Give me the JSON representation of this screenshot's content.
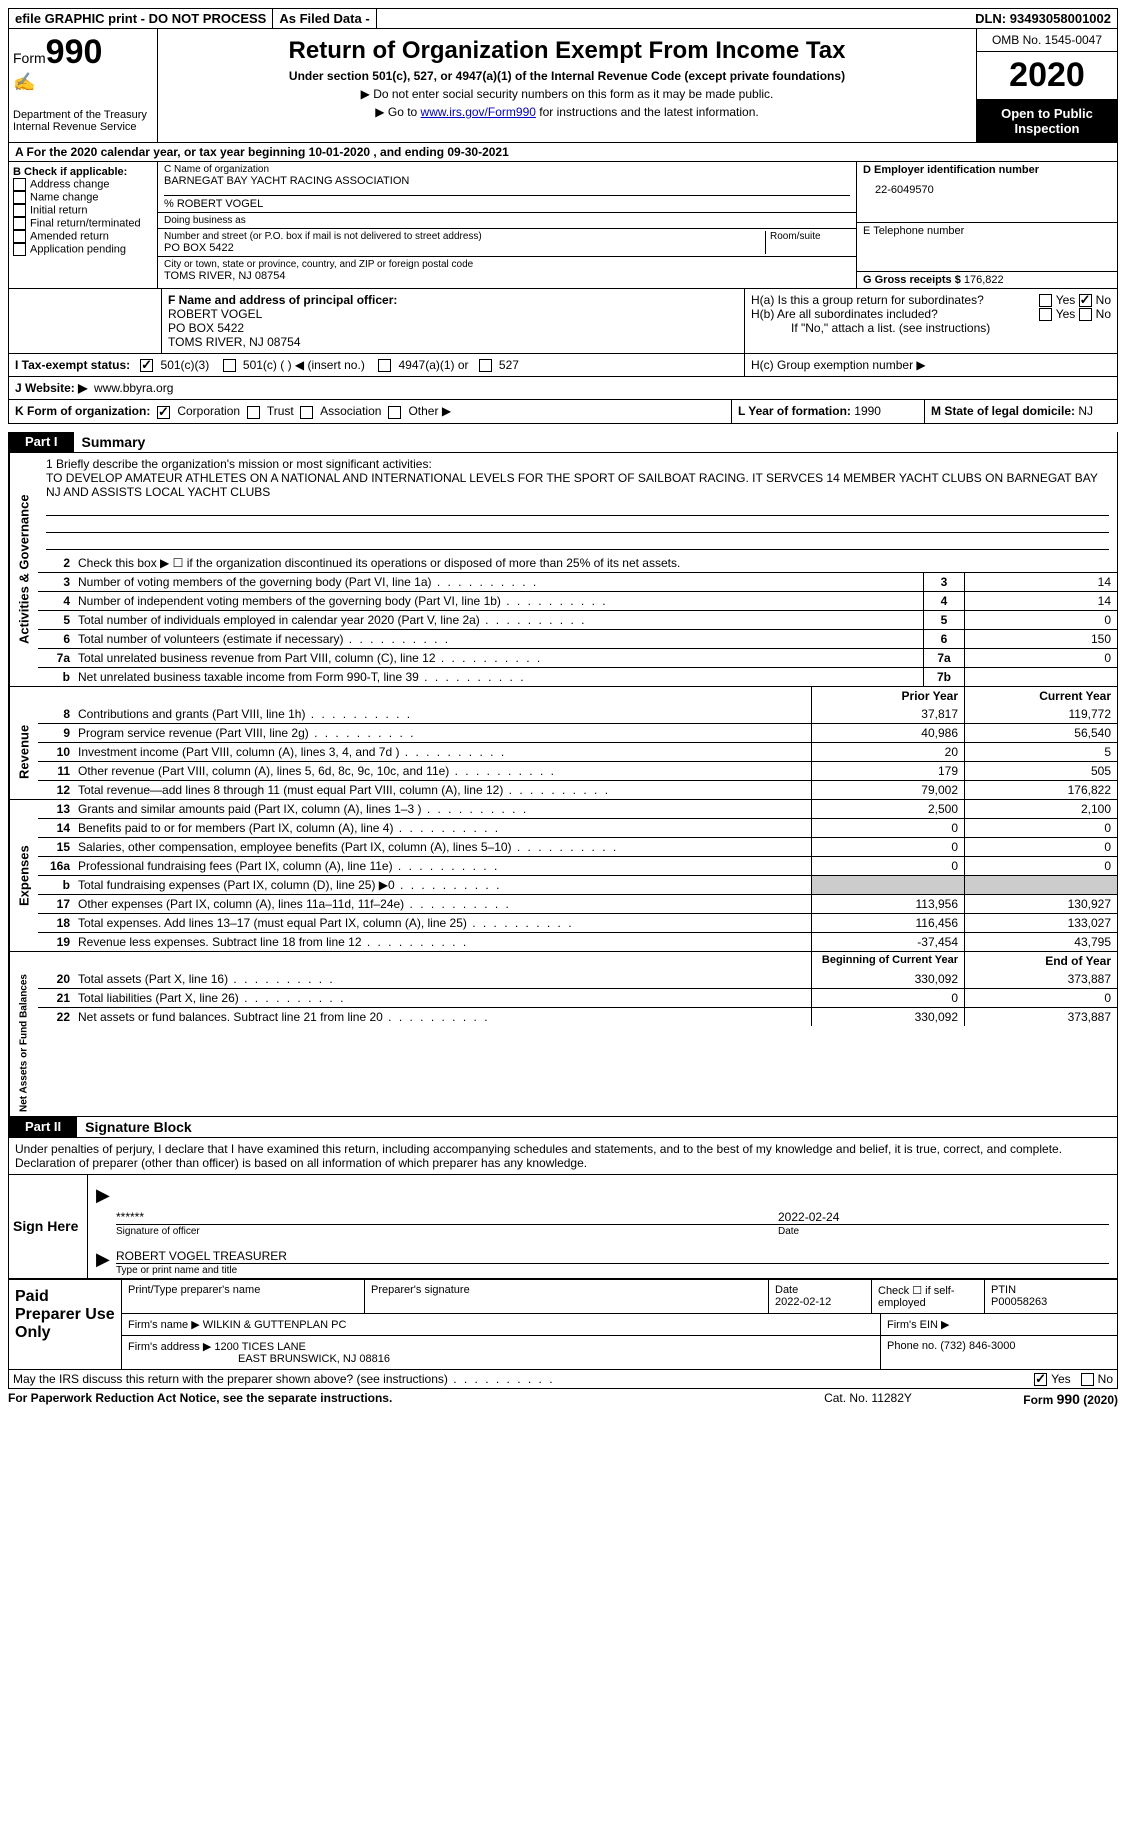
{
  "topbar": {
    "efile": "efile GRAPHIC print - DO NOT PROCESS",
    "asfiled": "As Filed Data -",
    "dln_label": "DLN:",
    "dln": "93493058001002"
  },
  "header": {
    "form_prefix": "Form",
    "form_num": "990",
    "dept": "Department of the Treasury\nInternal Revenue Service",
    "title": "Return of Organization Exempt From Income Tax",
    "sub": "Under section 501(c), 527, or 4947(a)(1) of the Internal Revenue Code (except private foundations)",
    "line1": "▶ Do not enter social security numbers on this form as it may be made public.",
    "line2_a": "▶ Go to ",
    "line2_link": "www.irs.gov/Form990",
    "line2_b": " for instructions and the latest information.",
    "omb": "OMB No. 1545-0047",
    "year": "2020",
    "open": "Open to Public Inspection"
  },
  "rowA": "A   For the 2020 calendar year, or tax year beginning 10-01-2020   , and ending 09-30-2021",
  "boxB": {
    "title": "B Check if applicable:",
    "items": [
      "Address change",
      "Name change",
      "Initial return",
      "Final return/terminated",
      "Amended return",
      "Application pending"
    ]
  },
  "boxC": {
    "label_name": "C Name of organization",
    "org": "BARNEGAT BAY YACHT RACING ASSOCIATION",
    "care": "% ROBERT VOGEL",
    "dba_label": "Doing business as",
    "street_label": "Number and street (or P.O. box if mail is not delivered to street address)",
    "room_label": "Room/suite",
    "street": "PO BOX 5422",
    "city_label": "City or town, state or province, country, and ZIP or foreign postal code",
    "city": "TOMS RIVER, NJ  08754"
  },
  "boxD": {
    "label": "D Employer identification number",
    "ein": "22-6049570"
  },
  "boxE": {
    "label": "E Telephone number"
  },
  "boxG": {
    "label": "G Gross receipts $",
    "val": "176,822"
  },
  "boxF": {
    "label": "F  Name and address of principal officer:",
    "name": "ROBERT VOGEL",
    "street": "PO BOX 5422",
    "city": "TOMS RIVER, NJ  08754"
  },
  "boxH": {
    "ha": "H(a)  Is this a group return for subordinates?",
    "hb": "H(b)  Are all subordinates included?",
    "hb_note": "If \"No,\" attach a list. (see instructions)",
    "hc": "H(c)  Group exemption number ▶",
    "yes": "Yes",
    "no": "No"
  },
  "rowI": {
    "label": "I   Tax-exempt status:",
    "o1": "501(c)(3)",
    "o2": "501(c) (   ) ◀ (insert no.)",
    "o3": "4947(a)(1) or",
    "o4": "527"
  },
  "rowJ": {
    "label": "J   Website: ▶",
    "val": "www.bbyra.org"
  },
  "rowK": {
    "label": "K Form of organization:",
    "o1": "Corporation",
    "o2": "Trust",
    "o3": "Association",
    "o4": "Other ▶"
  },
  "rowL": {
    "label": "L Year of formation:",
    "val": "1990"
  },
  "rowM": {
    "label": "M State of legal domicile:",
    "val": "NJ"
  },
  "part1": {
    "label": "Part I",
    "title": "Summary"
  },
  "mission": {
    "prompt": "1 Briefly describe the organization's mission or most significant activities:",
    "text": "TO DEVELOP AMATEUR ATHLETES ON A NATIONAL AND INTERNATIONAL LEVELS FOR THE SPORT OF SAILBOAT RACING. IT SERVCES 14 MEMBER YACHT CLUBS ON BARNEGAT BAY NJ AND ASSISTS LOCAL YACHT CLUBS"
  },
  "governance": {
    "line2": "Check this box ▶ ☐ if the organization discontinued its operations or disposed of more than 25% of its net assets.",
    "lines": [
      {
        "n": "3",
        "d": "Number of voting members of the governing body (Part VI, line 1a)",
        "box": "3",
        "v": "14"
      },
      {
        "n": "4",
        "d": "Number of independent voting members of the governing body (Part VI, line 1b)",
        "box": "4",
        "v": "14"
      },
      {
        "n": "5",
        "d": "Total number of individuals employed in calendar year 2020 (Part V, line 2a)",
        "box": "5",
        "v": "0"
      },
      {
        "n": "6",
        "d": "Total number of volunteers (estimate if necessary)",
        "box": "6",
        "v": "150"
      },
      {
        "n": "7a",
        "d": "Total unrelated business revenue from Part VIII, column (C), line 12",
        "box": "7a",
        "v": "0"
      },
      {
        "n": "b",
        "d": "Net unrelated business taxable income from Form 990-T, line 39",
        "box": "7b",
        "v": ""
      }
    ]
  },
  "years": {
    "prior": "Prior Year",
    "current": "Current Year"
  },
  "revenue": [
    {
      "n": "8",
      "d": "Contributions and grants (Part VIII, line 1h)",
      "p": "37,817",
      "c": "119,772"
    },
    {
      "n": "9",
      "d": "Program service revenue (Part VIII, line 2g)",
      "p": "40,986",
      "c": "56,540"
    },
    {
      "n": "10",
      "d": "Investment income (Part VIII, column (A), lines 3, 4, and 7d )",
      "p": "20",
      "c": "5"
    },
    {
      "n": "11",
      "d": "Other revenue (Part VIII, column (A), lines 5, 6d, 8c, 9c, 10c, and 11e)",
      "p": "179",
      "c": "505"
    },
    {
      "n": "12",
      "d": "Total revenue—add lines 8 through 11 (must equal Part VIII, column (A), line 12)",
      "p": "79,002",
      "c": "176,822"
    }
  ],
  "expenses": [
    {
      "n": "13",
      "d": "Grants and similar amounts paid (Part IX, column (A), lines 1–3 )",
      "p": "2,500",
      "c": "2,100"
    },
    {
      "n": "14",
      "d": "Benefits paid to or for members (Part IX, column (A), line 4)",
      "p": "0",
      "c": "0"
    },
    {
      "n": "15",
      "d": "Salaries, other compensation, employee benefits (Part IX, column (A), lines 5–10)",
      "p": "0",
      "c": "0"
    },
    {
      "n": "16a",
      "d": "Professional fundraising fees (Part IX, column (A), line 11e)",
      "p": "0",
      "c": "0"
    },
    {
      "n": "b",
      "d": "Total fundraising expenses (Part IX, column (D), line 25) ▶0",
      "p": "",
      "c": "",
      "shaded": true
    },
    {
      "n": "17",
      "d": "Other expenses (Part IX, column (A), lines 11a–11d, 11f–24e)",
      "p": "113,956",
      "c": "130,927"
    },
    {
      "n": "18",
      "d": "Total expenses. Add lines 13–17 (must equal Part IX, column (A), line 25)",
      "p": "116,456",
      "c": "133,027"
    },
    {
      "n": "19",
      "d": "Revenue less expenses. Subtract line 18 from line 12",
      "p": "-37,454",
      "c": "43,795"
    }
  ],
  "years2": {
    "prior": "Beginning of Current Year",
    "current": "End of Year"
  },
  "netassets": [
    {
      "n": "20",
      "d": "Total assets (Part X, line 16)",
      "p": "330,092",
      "c": "373,887"
    },
    {
      "n": "21",
      "d": "Total liabilities (Part X, line 26)",
      "p": "0",
      "c": "0"
    },
    {
      "n": "22",
      "d": "Net assets or fund balances. Subtract line 21 from line 20",
      "p": "330,092",
      "c": "373,887"
    }
  ],
  "part2": {
    "label": "Part II",
    "title": "Signature Block"
  },
  "sig": {
    "text": "Under penalties of perjury, I declare that I have examined this return, including accompanying schedules and statements, and to the best of my knowledge and belief, it is true, correct, and complete. Declaration of preparer (other than officer) is based on all information of which preparer has any knowledge.",
    "sign_here": "Sign Here",
    "stars": "******",
    "sig_label": "Signature of officer",
    "date": "2022-02-24",
    "date_label": "Date",
    "name": "ROBERT VOGEL TREASURER",
    "name_label": "Type or print name and title"
  },
  "preparer": {
    "left": "Paid Preparer Use Only",
    "h1": "Print/Type preparer's name",
    "h2": "Preparer's signature",
    "h3": "Date",
    "h3v": "2022-02-12",
    "h4": "Check ☐ if self-employed",
    "h5": "PTIN",
    "h5v": "P00058263",
    "firm_name_label": "Firm's name    ▶",
    "firm_name": "WILKIN & GUTTENPLAN PC",
    "firm_ein_label": "Firm's EIN ▶",
    "firm_addr_label": "Firm's address ▶",
    "firm_addr": "1200 TICES LANE",
    "firm_city": "EAST BRUNSWICK, NJ  08816",
    "phone_label": "Phone no.",
    "phone": "(732) 846-3000"
  },
  "footer": {
    "discuss": "May the IRS discuss this return with the preparer shown above? (see instructions)",
    "yes": "Yes",
    "no": "No",
    "paperwork": "For Paperwork Reduction Act Notice, see the separate instructions.",
    "cat": "Cat. No. 11282Y",
    "form": "Form 990 (2020)"
  },
  "vtabs": {
    "gov": "Activities & Governance",
    "rev": "Revenue",
    "exp": "Expenses",
    "net": "Net Assets or Fund Balances"
  }
}
